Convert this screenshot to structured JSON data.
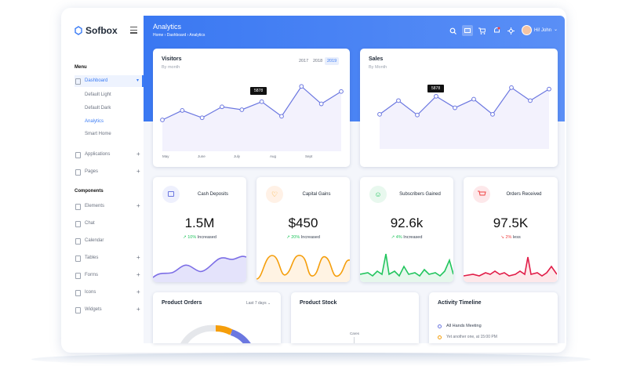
{
  "brand": "Sofbox",
  "header": {
    "title": "Analytics",
    "breadcrumb": "Home › Dashboard › Analytics",
    "user": "Hi! John"
  },
  "sidebar": {
    "menu_heading": "Menu",
    "dashboard": "Dashboard",
    "dashboard_items": [
      "Default Light",
      "Default Dark",
      "Analytics",
      "Smart Home"
    ],
    "menu_items": [
      "Applications",
      "Pages"
    ],
    "components_heading": "Components",
    "component_items": [
      "Elements",
      "Chat",
      "Calendar",
      "Tables",
      "Forms",
      "Icons",
      "Widgets"
    ]
  },
  "visitors": {
    "type": "line",
    "title": "Visitors",
    "subtitle": "By month",
    "years": [
      "2017",
      "2018",
      "2019"
    ],
    "tooltip": "5878",
    "x_labels": [
      "May",
      "June",
      "July",
      "Aug",
      "Sept"
    ],
    "values": [
      43,
      56,
      46,
      61,
      57,
      68,
      48,
      89,
      65,
      82
    ],
    "ylim": [
      0,
      100
    ],
    "color": "#6b77e0"
  },
  "sales": {
    "type": "line",
    "title": "Sales",
    "subtitle": "By Month",
    "tooltip": "5878",
    "values": [
      48,
      67,
      47,
      73,
      57,
      69,
      48,
      85,
      67,
      83
    ],
    "ylim": [
      0,
      100
    ],
    "color": "#6b77e0"
  },
  "stats": [
    {
      "title": "Cash Deposits",
      "value": "1.5M",
      "change": "10%",
      "trend": "Increased"
    },
    {
      "title": "Capital Gains",
      "value": "$450",
      "change": "20%",
      "trend": "Increased"
    },
    {
      "title": "Subscribers Gained",
      "value": "92.6k",
      "change": "4%",
      "trend": "Increased"
    },
    {
      "title": "Orders Received",
      "value": "97.5K",
      "change": "2%",
      "trend": "less"
    }
  ],
  "product_orders": {
    "title": "Product Orders",
    "filter": "Last 7 days"
  },
  "product_stock": {
    "title": "Product Stock",
    "label": "Cares"
  },
  "activity": {
    "title": "Activity Timeline",
    "events": [
      "All Hands Meeting",
      "Yet another one, at 15:00 PM"
    ]
  }
}
